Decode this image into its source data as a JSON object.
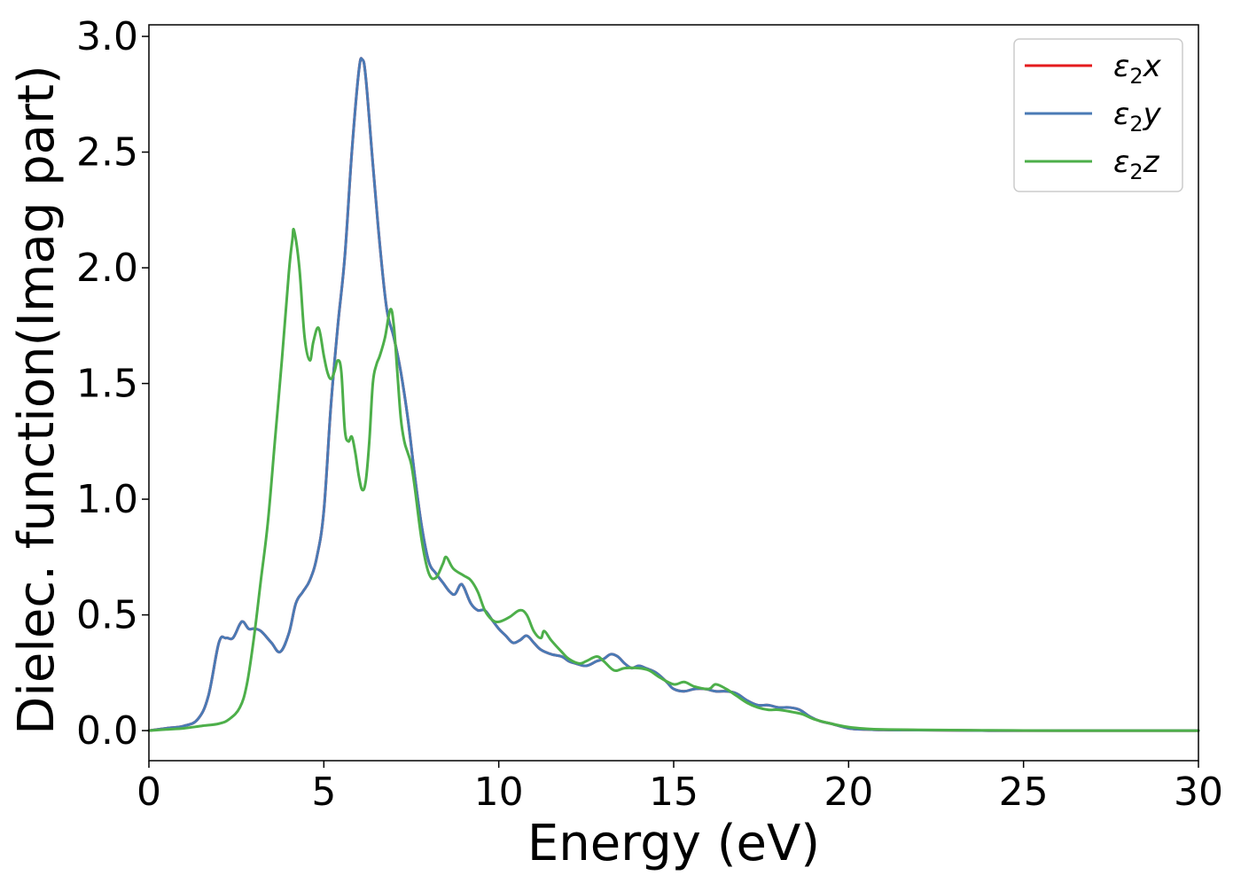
{
  "chart_data": {
    "type": "line",
    "title": "",
    "xlabel": "Energy (eV)",
    "ylabel": "Dielec. function(Imag part)",
    "xlim": [
      0,
      30
    ],
    "ylim": [
      -0.13,
      3.05
    ],
    "xticks": [
      0,
      5,
      10,
      15,
      20,
      25,
      30
    ],
    "xtick_labels": [
      "0",
      "5",
      "10",
      "15",
      "20",
      "25",
      "30"
    ],
    "yticks": [
      0.0,
      0.5,
      1.0,
      1.5,
      2.0,
      2.5,
      3.0
    ],
    "ytick_labels": [
      "0.0",
      "0.5",
      "1.0",
      "1.5",
      "2.0",
      "2.5",
      "3.0"
    ],
    "grid": false,
    "legend_position": "top-right",
    "series": [
      {
        "name": "ε2x",
        "legend_base": "ε",
        "legend_sub": "2",
        "legend_suffix": "x",
        "color": "#e41a1c",
        "x": [
          0,
          0.5,
          1.0,
          1.4,
          1.7,
          2.0,
          2.2,
          2.4,
          2.6,
          2.7,
          2.85,
          3.0,
          3.2,
          3.5,
          3.75,
          4.0,
          4.2,
          4.4,
          4.6,
          4.8,
          5.0,
          5.2,
          5.4,
          5.6,
          5.8,
          6.0,
          6.1,
          6.2,
          6.4,
          6.6,
          6.8,
          7.0,
          7.2,
          7.4,
          7.6,
          7.8,
          8.0,
          8.2,
          8.4,
          8.6,
          8.75,
          8.9,
          9.0,
          9.2,
          9.4,
          9.6,
          9.8,
          10.0,
          10.2,
          10.4,
          10.6,
          10.8,
          11.0,
          11.2,
          11.5,
          11.8,
          12.0,
          12.2,
          12.5,
          12.8,
          13.0,
          13.2,
          13.4,
          13.6,
          13.8,
          14.0,
          14.2,
          14.5,
          14.8,
          15.0,
          15.3,
          15.6,
          15.9,
          16.2,
          16.5,
          16.8,
          17.1,
          17.4,
          17.7,
          18.0,
          18.3,
          18.6,
          18.9,
          19.2,
          19.5,
          20.0,
          20.5,
          21.0,
          22.0,
          24.0,
          26.0,
          28.0,
          30.0
        ],
        "y": [
          0.0,
          0.01,
          0.02,
          0.05,
          0.15,
          0.38,
          0.4,
          0.4,
          0.46,
          0.47,
          0.44,
          0.44,
          0.43,
          0.38,
          0.34,
          0.42,
          0.55,
          0.6,
          0.65,
          0.75,
          0.95,
          1.4,
          1.75,
          2.05,
          2.5,
          2.85,
          2.9,
          2.82,
          2.45,
          2.1,
          1.82,
          1.7,
          1.55,
          1.35,
          1.1,
          0.88,
          0.73,
          0.68,
          0.64,
          0.6,
          0.59,
          0.63,
          0.62,
          0.55,
          0.52,
          0.52,
          0.48,
          0.44,
          0.41,
          0.38,
          0.39,
          0.41,
          0.38,
          0.35,
          0.33,
          0.32,
          0.3,
          0.29,
          0.28,
          0.3,
          0.31,
          0.33,
          0.32,
          0.29,
          0.27,
          0.28,
          0.27,
          0.25,
          0.21,
          0.18,
          0.17,
          0.18,
          0.18,
          0.17,
          0.17,
          0.16,
          0.13,
          0.11,
          0.11,
          0.1,
          0.1,
          0.09,
          0.06,
          0.04,
          0.03,
          0.01,
          0.005,
          0.003,
          0.002,
          0.0,
          0.0,
          0.0,
          0.0
        ]
      },
      {
        "name": "ε2y",
        "legend_base": "ε",
        "legend_sub": "2",
        "legend_suffix": "y",
        "color": "#4a7ab5",
        "x": [
          0,
          0.5,
          1.0,
          1.4,
          1.7,
          2.0,
          2.2,
          2.4,
          2.6,
          2.7,
          2.85,
          3.0,
          3.2,
          3.5,
          3.75,
          4.0,
          4.2,
          4.4,
          4.6,
          4.8,
          5.0,
          5.2,
          5.4,
          5.6,
          5.8,
          6.0,
          6.1,
          6.2,
          6.4,
          6.6,
          6.8,
          7.0,
          7.2,
          7.4,
          7.6,
          7.8,
          8.0,
          8.2,
          8.4,
          8.6,
          8.75,
          8.9,
          9.0,
          9.2,
          9.4,
          9.6,
          9.8,
          10.0,
          10.2,
          10.4,
          10.6,
          10.8,
          11.0,
          11.2,
          11.5,
          11.8,
          12.0,
          12.2,
          12.5,
          12.8,
          13.0,
          13.2,
          13.4,
          13.6,
          13.8,
          14.0,
          14.2,
          14.5,
          14.8,
          15.0,
          15.3,
          15.6,
          15.9,
          16.2,
          16.5,
          16.8,
          17.1,
          17.4,
          17.7,
          18.0,
          18.3,
          18.6,
          18.9,
          19.2,
          19.5,
          20.0,
          20.5,
          21.0,
          22.0,
          24.0,
          26.0,
          28.0,
          30.0
        ],
        "y": [
          0.0,
          0.01,
          0.02,
          0.05,
          0.15,
          0.38,
          0.4,
          0.4,
          0.46,
          0.47,
          0.44,
          0.44,
          0.43,
          0.38,
          0.34,
          0.42,
          0.55,
          0.6,
          0.65,
          0.75,
          0.95,
          1.4,
          1.75,
          2.05,
          2.5,
          2.85,
          2.9,
          2.82,
          2.45,
          2.1,
          1.82,
          1.7,
          1.55,
          1.35,
          1.1,
          0.88,
          0.73,
          0.68,
          0.64,
          0.6,
          0.59,
          0.63,
          0.62,
          0.55,
          0.52,
          0.52,
          0.48,
          0.44,
          0.41,
          0.38,
          0.39,
          0.41,
          0.38,
          0.35,
          0.33,
          0.32,
          0.3,
          0.29,
          0.28,
          0.3,
          0.31,
          0.33,
          0.32,
          0.29,
          0.27,
          0.28,
          0.27,
          0.25,
          0.21,
          0.18,
          0.17,
          0.18,
          0.18,
          0.17,
          0.17,
          0.16,
          0.13,
          0.11,
          0.11,
          0.1,
          0.1,
          0.09,
          0.06,
          0.04,
          0.03,
          0.01,
          0.005,
          0.003,
          0.002,
          0.0,
          0.0,
          0.0,
          0.0
        ]
      },
      {
        "name": "ε2z",
        "legend_base": "ε",
        "legend_sub": "2",
        "legend_suffix": "z",
        "color": "#4daf4a",
        "x": [
          0,
          0.5,
          1.0,
          1.5,
          2.0,
          2.3,
          2.6,
          2.8,
          3.0,
          3.2,
          3.4,
          3.6,
          3.8,
          4.0,
          4.1,
          4.15,
          4.3,
          4.45,
          4.6,
          4.7,
          4.85,
          5.0,
          5.1,
          5.2,
          5.3,
          5.4,
          5.5,
          5.6,
          5.7,
          5.8,
          5.9,
          6.0,
          6.1,
          6.2,
          6.3,
          6.4,
          6.5,
          6.6,
          6.75,
          6.9,
          7.0,
          7.1,
          7.2,
          7.3,
          7.4,
          7.5,
          7.6,
          7.8,
          8.0,
          8.2,
          8.4,
          8.5,
          8.7,
          9.0,
          9.2,
          9.4,
          9.6,
          9.8,
          10.0,
          10.3,
          10.6,
          10.8,
          11.0,
          11.2,
          11.3,
          11.5,
          11.8,
          12.0,
          12.3,
          12.5,
          12.8,
          13.0,
          13.3,
          13.6,
          14.0,
          14.3,
          14.6,
          15.0,
          15.3,
          15.6,
          16.0,
          16.2,
          16.5,
          16.8,
          17.1,
          17.4,
          17.7,
          18.0,
          18.4,
          18.7,
          19.0,
          19.5,
          20.0,
          20.5,
          21.0,
          22.0,
          24.0,
          26.0,
          28.0,
          30.0
        ],
        "y": [
          0.0,
          0.005,
          0.01,
          0.02,
          0.03,
          0.05,
          0.1,
          0.2,
          0.4,
          0.65,
          0.9,
          1.25,
          1.6,
          1.98,
          2.12,
          2.16,
          2.0,
          1.7,
          1.6,
          1.68,
          1.74,
          1.62,
          1.55,
          1.52,
          1.55,
          1.6,
          1.55,
          1.3,
          1.25,
          1.27,
          1.2,
          1.1,
          1.04,
          1.08,
          1.25,
          1.5,
          1.58,
          1.62,
          1.7,
          1.82,
          1.75,
          1.55,
          1.35,
          1.25,
          1.2,
          1.15,
          1.05,
          0.82,
          0.68,
          0.66,
          0.72,
          0.75,
          0.7,
          0.67,
          0.65,
          0.6,
          0.52,
          0.48,
          0.47,
          0.49,
          0.52,
          0.5,
          0.43,
          0.4,
          0.43,
          0.39,
          0.34,
          0.31,
          0.29,
          0.3,
          0.32,
          0.3,
          0.26,
          0.27,
          0.27,
          0.26,
          0.23,
          0.2,
          0.21,
          0.19,
          0.18,
          0.2,
          0.18,
          0.15,
          0.12,
          0.1,
          0.09,
          0.09,
          0.08,
          0.07,
          0.05,
          0.03,
          0.015,
          0.008,
          0.005,
          0.003,
          0.001,
          0.0,
          0.0,
          0.0
        ]
      }
    ]
  }
}
